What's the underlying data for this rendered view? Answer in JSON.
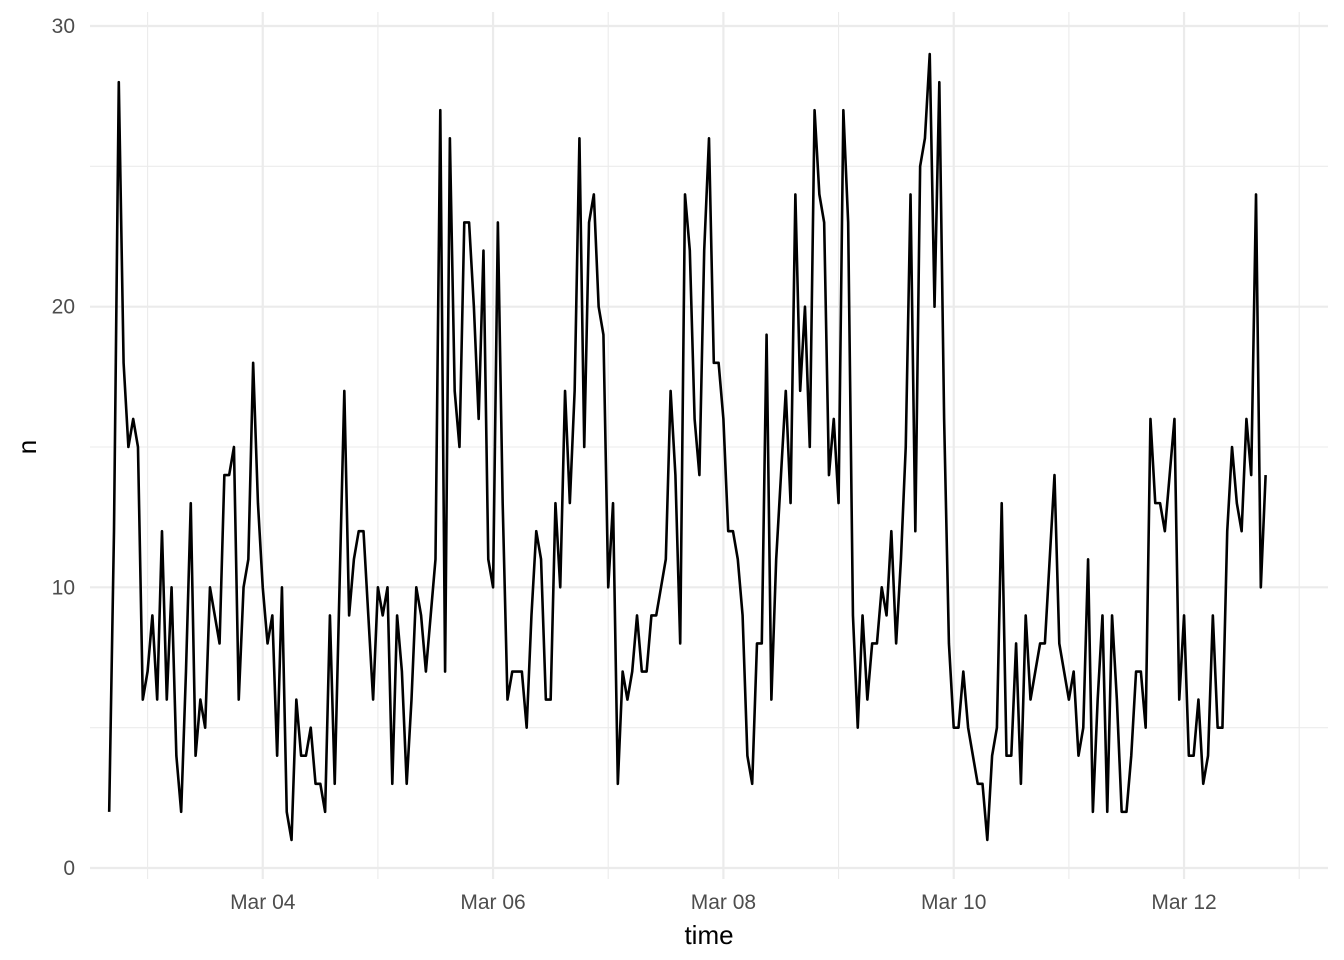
{
  "chart_data": {
    "type": "line",
    "title": "",
    "xlabel": "time",
    "ylabel": "n",
    "x_type": "datetime",
    "xlim": [
      "2024-03-02 12:00",
      "2024-03-13 06:00"
    ],
    "ylim": [
      0,
      30
    ],
    "y_ticks": [
      0,
      10,
      20,
      30
    ],
    "x_ticks": [
      {
        "value": "2024-03-04",
        "label": "Mar 04"
      },
      {
        "value": "2024-03-06",
        "label": "Mar 06"
      },
      {
        "value": "2024-03-08",
        "label": "Mar 08"
      },
      {
        "value": "2024-03-10",
        "label": "Mar 10"
      },
      {
        "value": "2024-03-12",
        "label": "Mar 12"
      }
    ],
    "grid": true,
    "legend": "none",
    "line_color": "#000000",
    "series": [
      {
        "x_start": "2024-03-02 16:00",
        "x_step_hours": 1,
        "values": [
          2,
          12,
          28,
          18,
          15,
          16,
          15,
          6,
          7,
          9,
          6,
          12,
          6,
          10,
          4,
          2,
          7,
          13,
          4,
          6,
          5,
          10,
          9,
          8,
          14,
          14,
          15,
          6,
          10,
          11,
          18,
          13,
          10,
          8,
          9,
          4,
          10,
          2,
          1,
          6,
          4,
          4,
          5,
          3,
          3,
          2,
          9,
          3,
          10,
          17,
          9,
          11,
          12,
          12,
          9,
          6,
          10,
          9,
          10,
          3,
          9,
          7,
          3,
          6,
          10,
          9,
          7,
          9,
          11,
          27,
          7,
          26,
          17,
          15,
          23,
          23,
          20,
          16,
          22,
          11,
          10,
          23,
          13,
          6,
          7,
          7,
          7,
          5,
          9,
          12,
          11,
          6,
          6,
          13,
          10,
          17,
          13,
          17,
          26,
          15,
          23,
          24,
          20,
          19,
          10,
          13,
          3,
          7,
          6,
          7,
          9,
          7,
          7,
          9,
          9,
          10,
          11,
          17,
          14,
          8,
          24,
          22,
          16,
          14,
          22,
          26,
          18,
          18,
          16,
          12,
          12,
          11,
          9,
          4,
          3,
          8,
          8,
          19,
          6,
          11,
          14,
          17,
          13,
          24,
          17,
          20,
          15,
          27,
          24,
          23,
          14,
          16,
          13,
          27,
          23,
          9,
          5,
          9,
          6,
          8,
          8,
          10,
          9,
          12,
          8,
          11,
          15,
          24,
          12,
          25,
          26,
          29,
          20,
          28,
          16,
          8,
          5,
          5,
          7,
          5,
          4,
          3,
          3,
          1,
          4,
          5,
          13,
          4,
          4,
          8,
          3,
          9,
          6,
          7,
          8,
          8,
          11,
          14,
          8,
          7,
          6,
          7,
          4,
          5,
          11,
          2,
          6,
          9,
          2,
          9,
          6,
          2,
          2,
          4,
          7,
          7,
          5,
          16,
          13,
          13,
          12,
          14,
          16,
          6,
          9,
          4,
          4,
          6,
          3,
          4,
          9,
          5,
          5,
          12,
          15,
          13,
          12,
          16,
          14,
          24,
          10,
          14
        ]
      }
    ]
  }
}
